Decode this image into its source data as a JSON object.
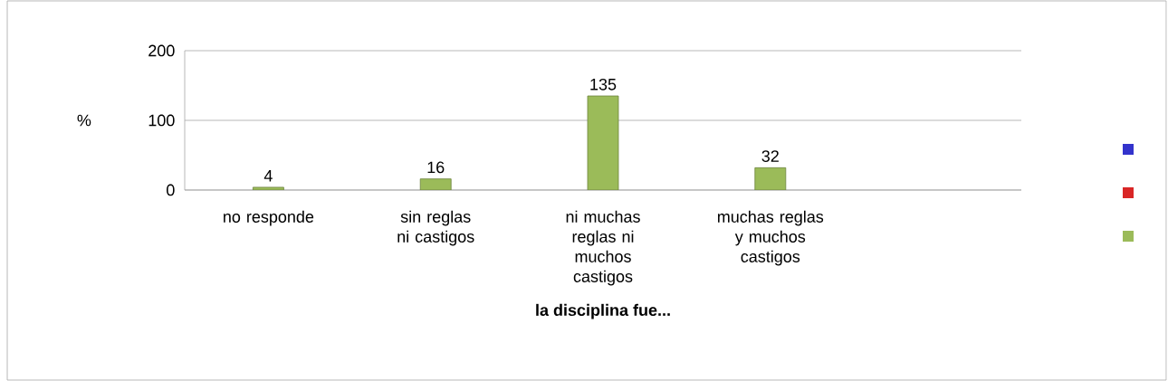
{
  "chart_data": {
    "type": "bar",
    "xlabel": "la disciplina fue...",
    "ylabel": "%",
    "categories": [
      "no responde",
      "sin reglas ni castigos",
      "ni muchas reglas ni muchos castigos",
      "muchas reglas y  muchos castigos",
      null
    ],
    "series": [
      {
        "color": "#9bbb59",
        "values": [
          4,
          16,
          135,
          32,
          null
        ]
      }
    ],
    "ylim": [
      0,
      200
    ],
    "yticks": [
      0,
      100,
      200
    ],
    "grid": "y",
    "data_labels": true
  }
}
